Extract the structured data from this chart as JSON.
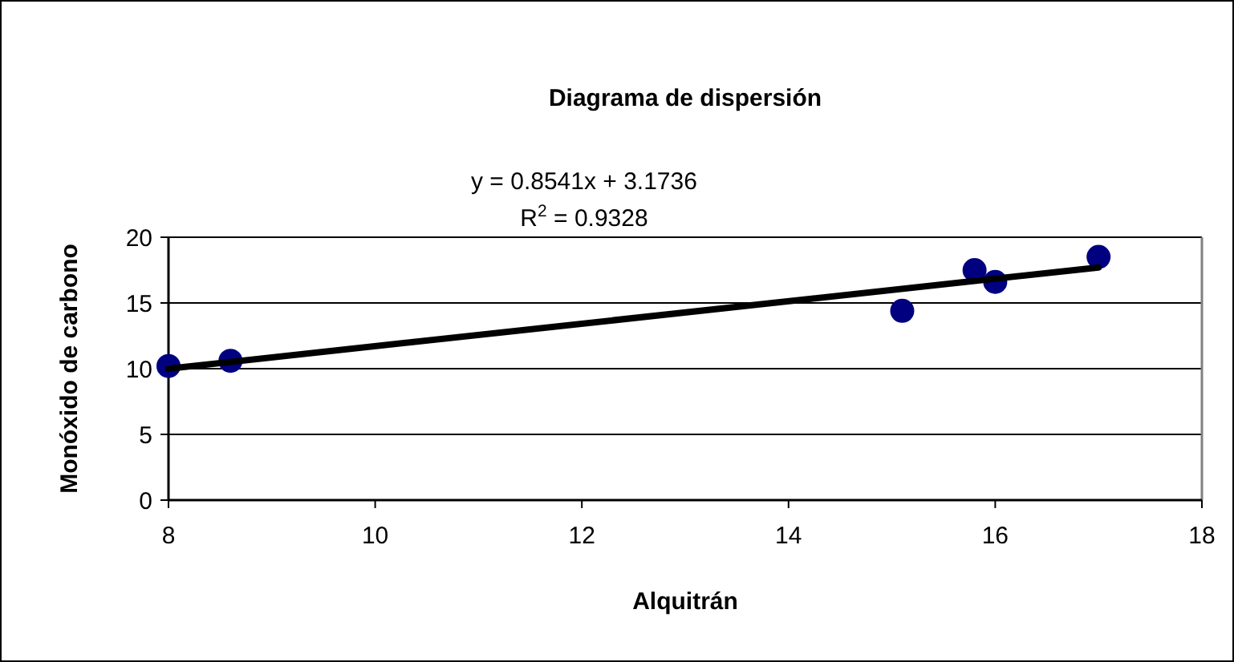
{
  "chart_data": {
    "type": "scatter",
    "title": "Diagrama de dispersión",
    "xlabel": "Alquitrán",
    "ylabel": "Monóxido de carbono",
    "annotations": [
      "y = 0.8541x + 3.1736",
      "R$^{2}$ = 0.9328"
    ],
    "xlim": [
      8,
      18
    ],
    "xticks": [
      8,
      10,
      12,
      14,
      16,
      18
    ],
    "ylim": [
      0,
      20
    ],
    "yticks": [
      0,
      5,
      10,
      15,
      20
    ],
    "grid": "y",
    "marker": "circle",
    "series": [
      {
        "color": "#000080",
        "x": [
          8,
          8.6,
          15.1,
          15.8,
          16,
          17
        ],
        "values": [
          10.2,
          10.6,
          14.4,
          17.5,
          16.6,
          18.5
        ]
      },
      {
        "type": "line",
        "color": "#000000",
        "x": [
          8,
          17
        ],
        "values": [
          10.0,
          17.7
        ],
        "marker": "none",
        "line_style": "solid"
      }
    ]
  }
}
